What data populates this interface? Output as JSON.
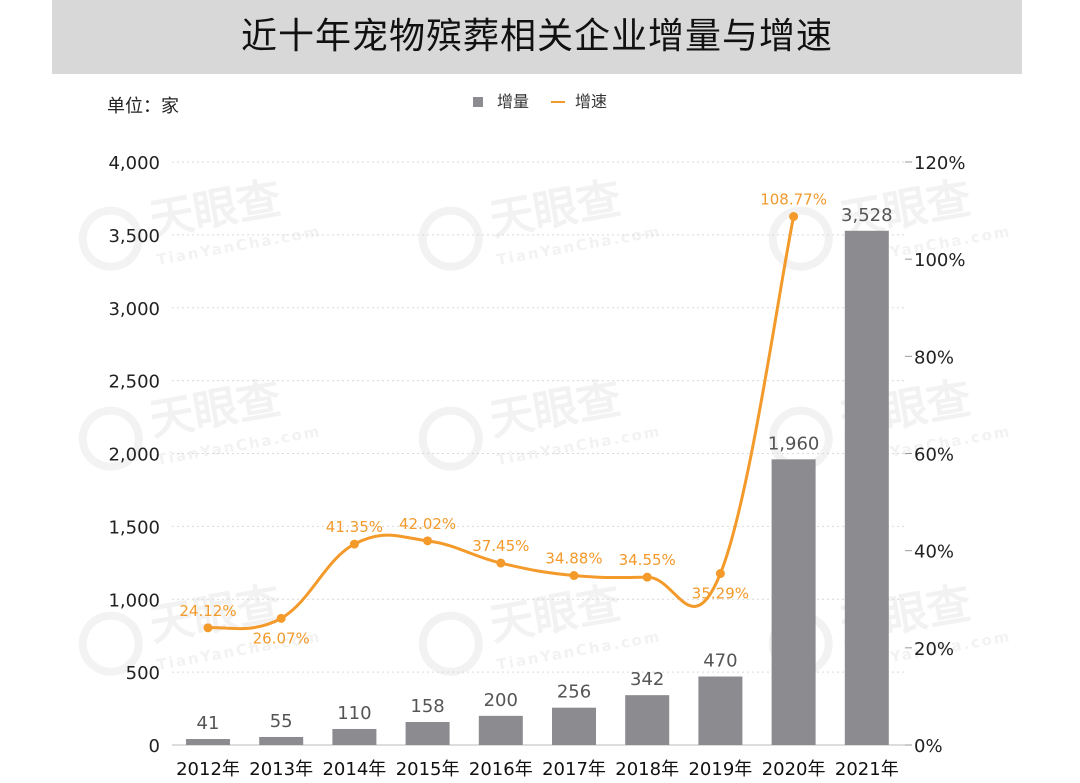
{
  "title": "近十年宠物殡葬相关企业增量与增速",
  "unit_label": "单位：家",
  "legend": {
    "bar_label": "增量",
    "line_label": "增速"
  },
  "watermark": "天眼查 TianYanCha.com",
  "colors": {
    "bar": "#8c8c90",
    "line": "#f39a2b",
    "line_label": "#f39a2b",
    "grid": "#d9d9d9",
    "text": "#333333",
    "bar_label": "#555555"
  },
  "chart_data": {
    "type": "bar",
    "title": "近十年宠物殡葬相关企业增量与增速",
    "categories": [
      "2012年",
      "2013年",
      "2014年",
      "2015年",
      "2016年",
      "2017年",
      "2018年",
      "2019年",
      "2020年",
      "2021年"
    ],
    "series": [
      {
        "name": "增量",
        "type": "bar",
        "axis": "left",
        "values": [
          41,
          55,
          110,
          158,
          200,
          256,
          342,
          470,
          1960,
          3528
        ],
        "labels": [
          "41",
          "55",
          "110",
          "158",
          "200",
          "256",
          "342",
          "470",
          "1,960",
          "3,528"
        ]
      },
      {
        "name": "增速",
        "type": "line",
        "axis": "right",
        "values": [
          24.12,
          26.07,
          41.35,
          42.02,
          37.45,
          34.88,
          34.55,
          35.29,
          108.77,
          null
        ],
        "labels": [
          "24.12%",
          "26.07%",
          "41.35%",
          "42.02%",
          "37.45%",
          "34.88%",
          "34.55%",
          "35.29%",
          "108.77%",
          ""
        ]
      }
    ],
    "y_left": {
      "min": 0,
      "max": 4000,
      "ticks": [
        0,
        500,
        1000,
        1500,
        2000,
        2500,
        3000,
        3500,
        4000
      ],
      "tick_labels": [
        "0",
        "500",
        "1,000",
        "1,500",
        "2,000",
        "2,500",
        "3,000",
        "3,500",
        "4,000"
      ]
    },
    "y_right": {
      "min": 0,
      "max": 120,
      "ticks": [
        0,
        20,
        40,
        60,
        80,
        100,
        120
      ],
      "tick_labels": [
        "0%",
        "20%",
        "40%",
        "60%",
        "80%",
        "100%",
        "120%"
      ]
    },
    "grid": true,
    "legend_position": "top-center"
  }
}
